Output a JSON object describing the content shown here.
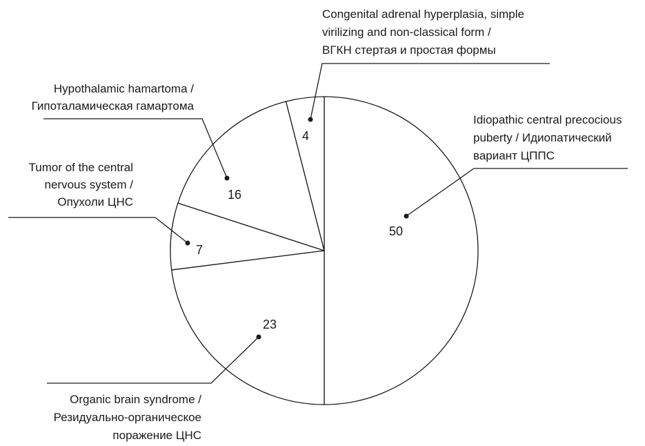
{
  "chart_data": {
    "type": "pie",
    "start": "top",
    "direction": "clockwise",
    "slices": [
      {
        "value": 50,
        "label": [
          "Idiopathic central precocious",
          "puberty / Идиопатический",
          "вариант ЦППС"
        ]
      },
      {
        "value": 23,
        "label": [
          "Organic brain syndrome /",
          "Резидуально-органическое",
          "поражение ЦНС"
        ]
      },
      {
        "value": 7,
        "label": [
          "Tumor of the central",
          "nervous system /",
          "Опухоли ЦНС"
        ]
      },
      {
        "value": 16,
        "label": [
          "Hypothalamic hamartoma /",
          "Гипоталамическая гамартома"
        ]
      },
      {
        "value": 4,
        "label": [
          "Congenital adrenal hyperplasia, simple",
          "virilizing and non-classical form /",
          "ВГКН стертая и простая формы"
        ]
      }
    ],
    "fill_color": "#ffffff",
    "stroke_color": "#1a1a1a"
  }
}
